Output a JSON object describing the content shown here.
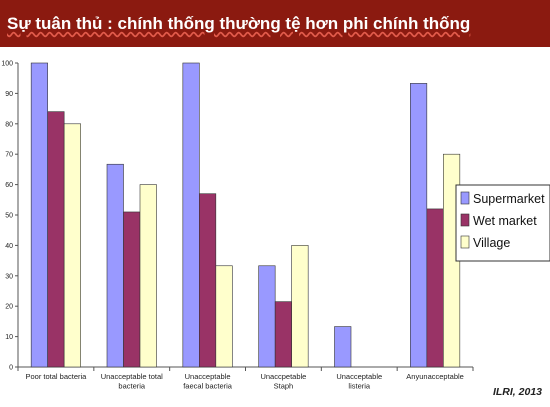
{
  "slide": {
    "title": "Sự tuân thủ : chính thống thường tệ hơn phi chính thống",
    "source": "ILRI, 2013"
  },
  "chart_data": {
    "type": "bar",
    "categories": [
      [
        "Poor total bacteria"
      ],
      [
        "Unacceptable total",
        "bacteria"
      ],
      [
        "Unacceptable",
        "faecal bacteria"
      ],
      [
        "Unaccpetable",
        "Staph"
      ],
      [
        "Unacceptable",
        "listeria"
      ],
      [
        "Anyunacceptable"
      ]
    ],
    "series": [
      {
        "name": "Supermarket",
        "color": "#9999ff",
        "values": [
          100,
          66.7,
          100,
          33.3,
          13.3,
          93.3
        ]
      },
      {
        "name": "Wet market",
        "color": "#993366",
        "values": [
          84,
          51,
          57,
          21.5,
          0,
          52
        ]
      },
      {
        "name": "Village",
        "color": "#ffffcc",
        "values": [
          80,
          60,
          33.3,
          40,
          0,
          70
        ]
      }
    ],
    "ylim": [
      0,
      100
    ],
    "yticks": [
      0,
      10,
      20,
      30,
      40,
      50,
      60,
      70,
      80,
      90,
      100
    ],
    "gridlines": false,
    "legend_position": "right"
  }
}
